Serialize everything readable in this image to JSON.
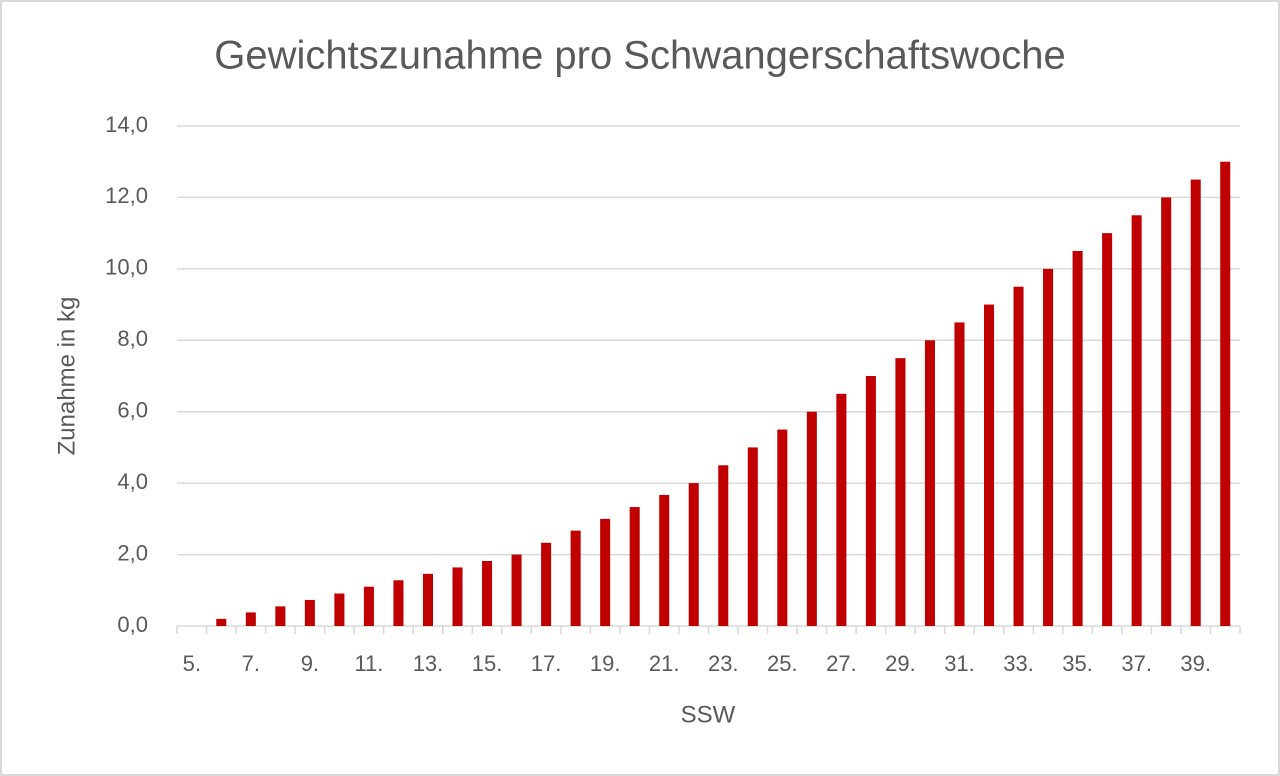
{
  "chart_data": {
    "type": "bar",
    "title": "Gewichtszunahme pro Schwangerschaftswoche",
    "x_label": "SSW",
    "y_label": "Zunahme in kg",
    "categories": [
      "5.",
      null,
      "7.",
      null,
      "9.",
      null,
      "11.",
      null,
      "13.",
      null,
      "15.",
      null,
      "17.",
      null,
      "19.",
      null,
      "21.",
      null,
      "23.",
      null,
      "25.",
      null,
      "27.",
      null,
      "29.",
      null,
      "31.",
      null,
      "33.",
      null,
      "35.",
      null,
      "37.",
      null,
      "39.",
      null
    ],
    "values": [
      0,
      0.2,
      0.38,
      0.55,
      0.73,
      0.91,
      1.1,
      1.28,
      1.46,
      1.64,
      1.82,
      2.0,
      2.33,
      2.67,
      3.0,
      3.33,
      3.67,
      4.0,
      4.5,
      5.0,
      5.5,
      6.0,
      6.5,
      7.0,
      7.5,
      8.0,
      8.5,
      9.0,
      9.5,
      10.0,
      10.5,
      11.0,
      11.5,
      12.0,
      12.5,
      13.0
    ],
    "color": "#c00000",
    "ylim": [
      0,
      14
    ],
    "yticks": [
      {
        "value": 0,
        "label": "0,0"
      },
      {
        "value": 2,
        "label": "2,0"
      },
      {
        "value": 4,
        "label": "4,0"
      },
      {
        "value": 6,
        "label": "6,0"
      },
      {
        "value": 8,
        "label": "8,0"
      },
      {
        "value": 10,
        "label": "10,0"
      },
      {
        "value": 12,
        "label": "12,0"
      },
      {
        "value": 14,
        "label": "14,0"
      }
    ],
    "grid": true
  }
}
